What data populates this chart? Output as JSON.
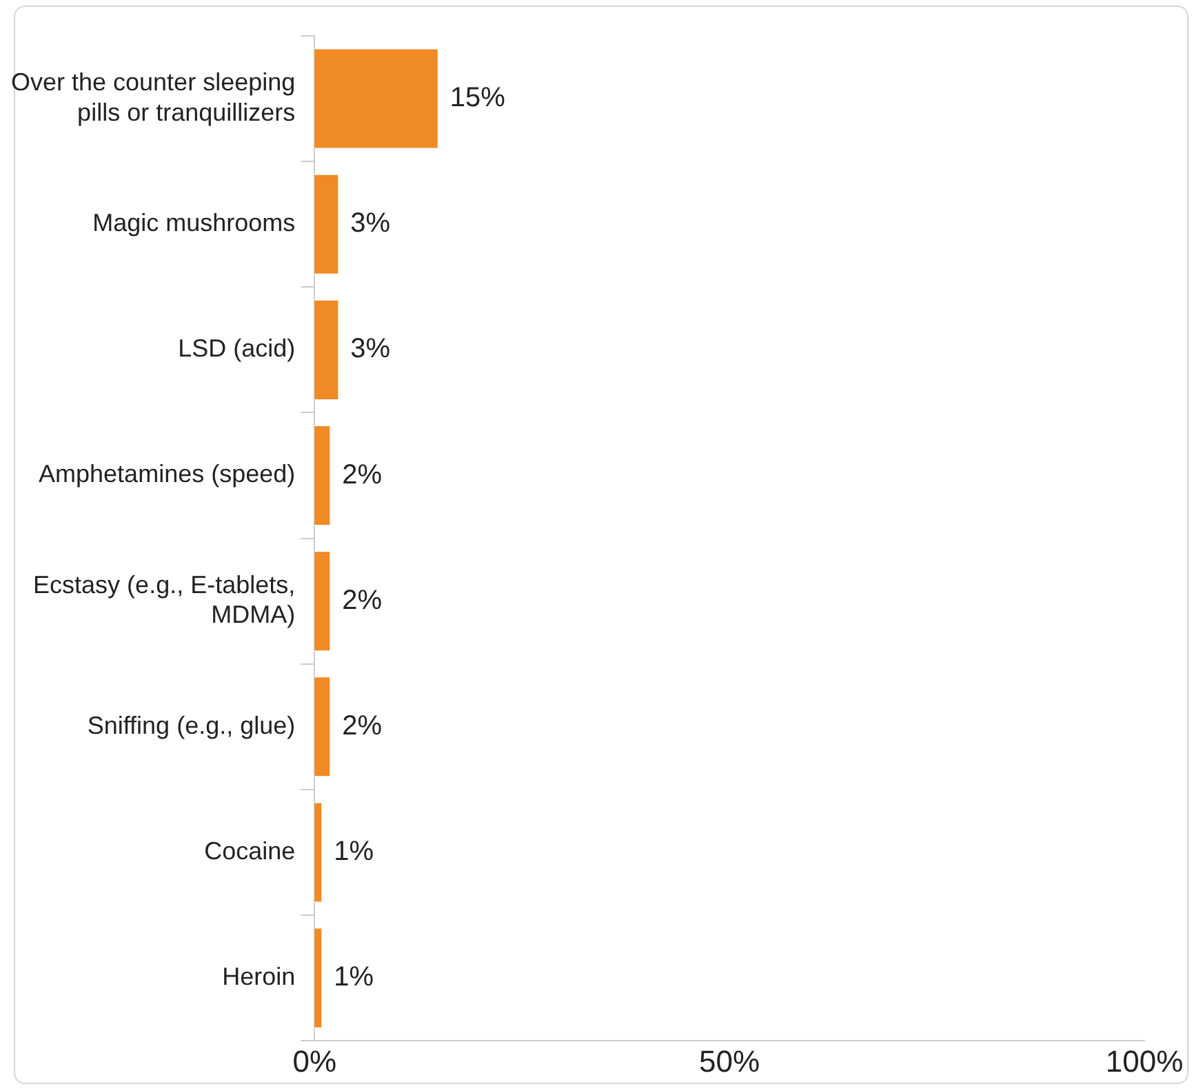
{
  "chart_data": {
    "type": "bar",
    "orientation": "horizontal",
    "categories": [
      "Over the counter sleeping pills or tranquillizers",
      "Magic mushrooms",
      "LSD (acid)",
      "Amphetamines (speed)",
      "Ecstasy (e.g., E-tablets, MDMA)",
      "Sniffing (e.g., glue)",
      "Cocaine",
      "Heroin"
    ],
    "values": [
      15,
      3,
      3,
      2,
      2,
      2,
      1,
      1
    ],
    "value_labels": [
      "15%",
      "3%",
      "3%",
      "2%",
      "2%",
      "2%",
      "1%",
      "1%"
    ],
    "color": "#f08a24",
    "xlim": [
      0,
      100
    ],
    "xticks": [
      {
        "value": 0,
        "label": "0%"
      },
      {
        "value": 50,
        "label": "50%"
      },
      {
        "value": 100,
        "label": "100%"
      }
    ],
    "grid": false,
    "legend": false
  }
}
